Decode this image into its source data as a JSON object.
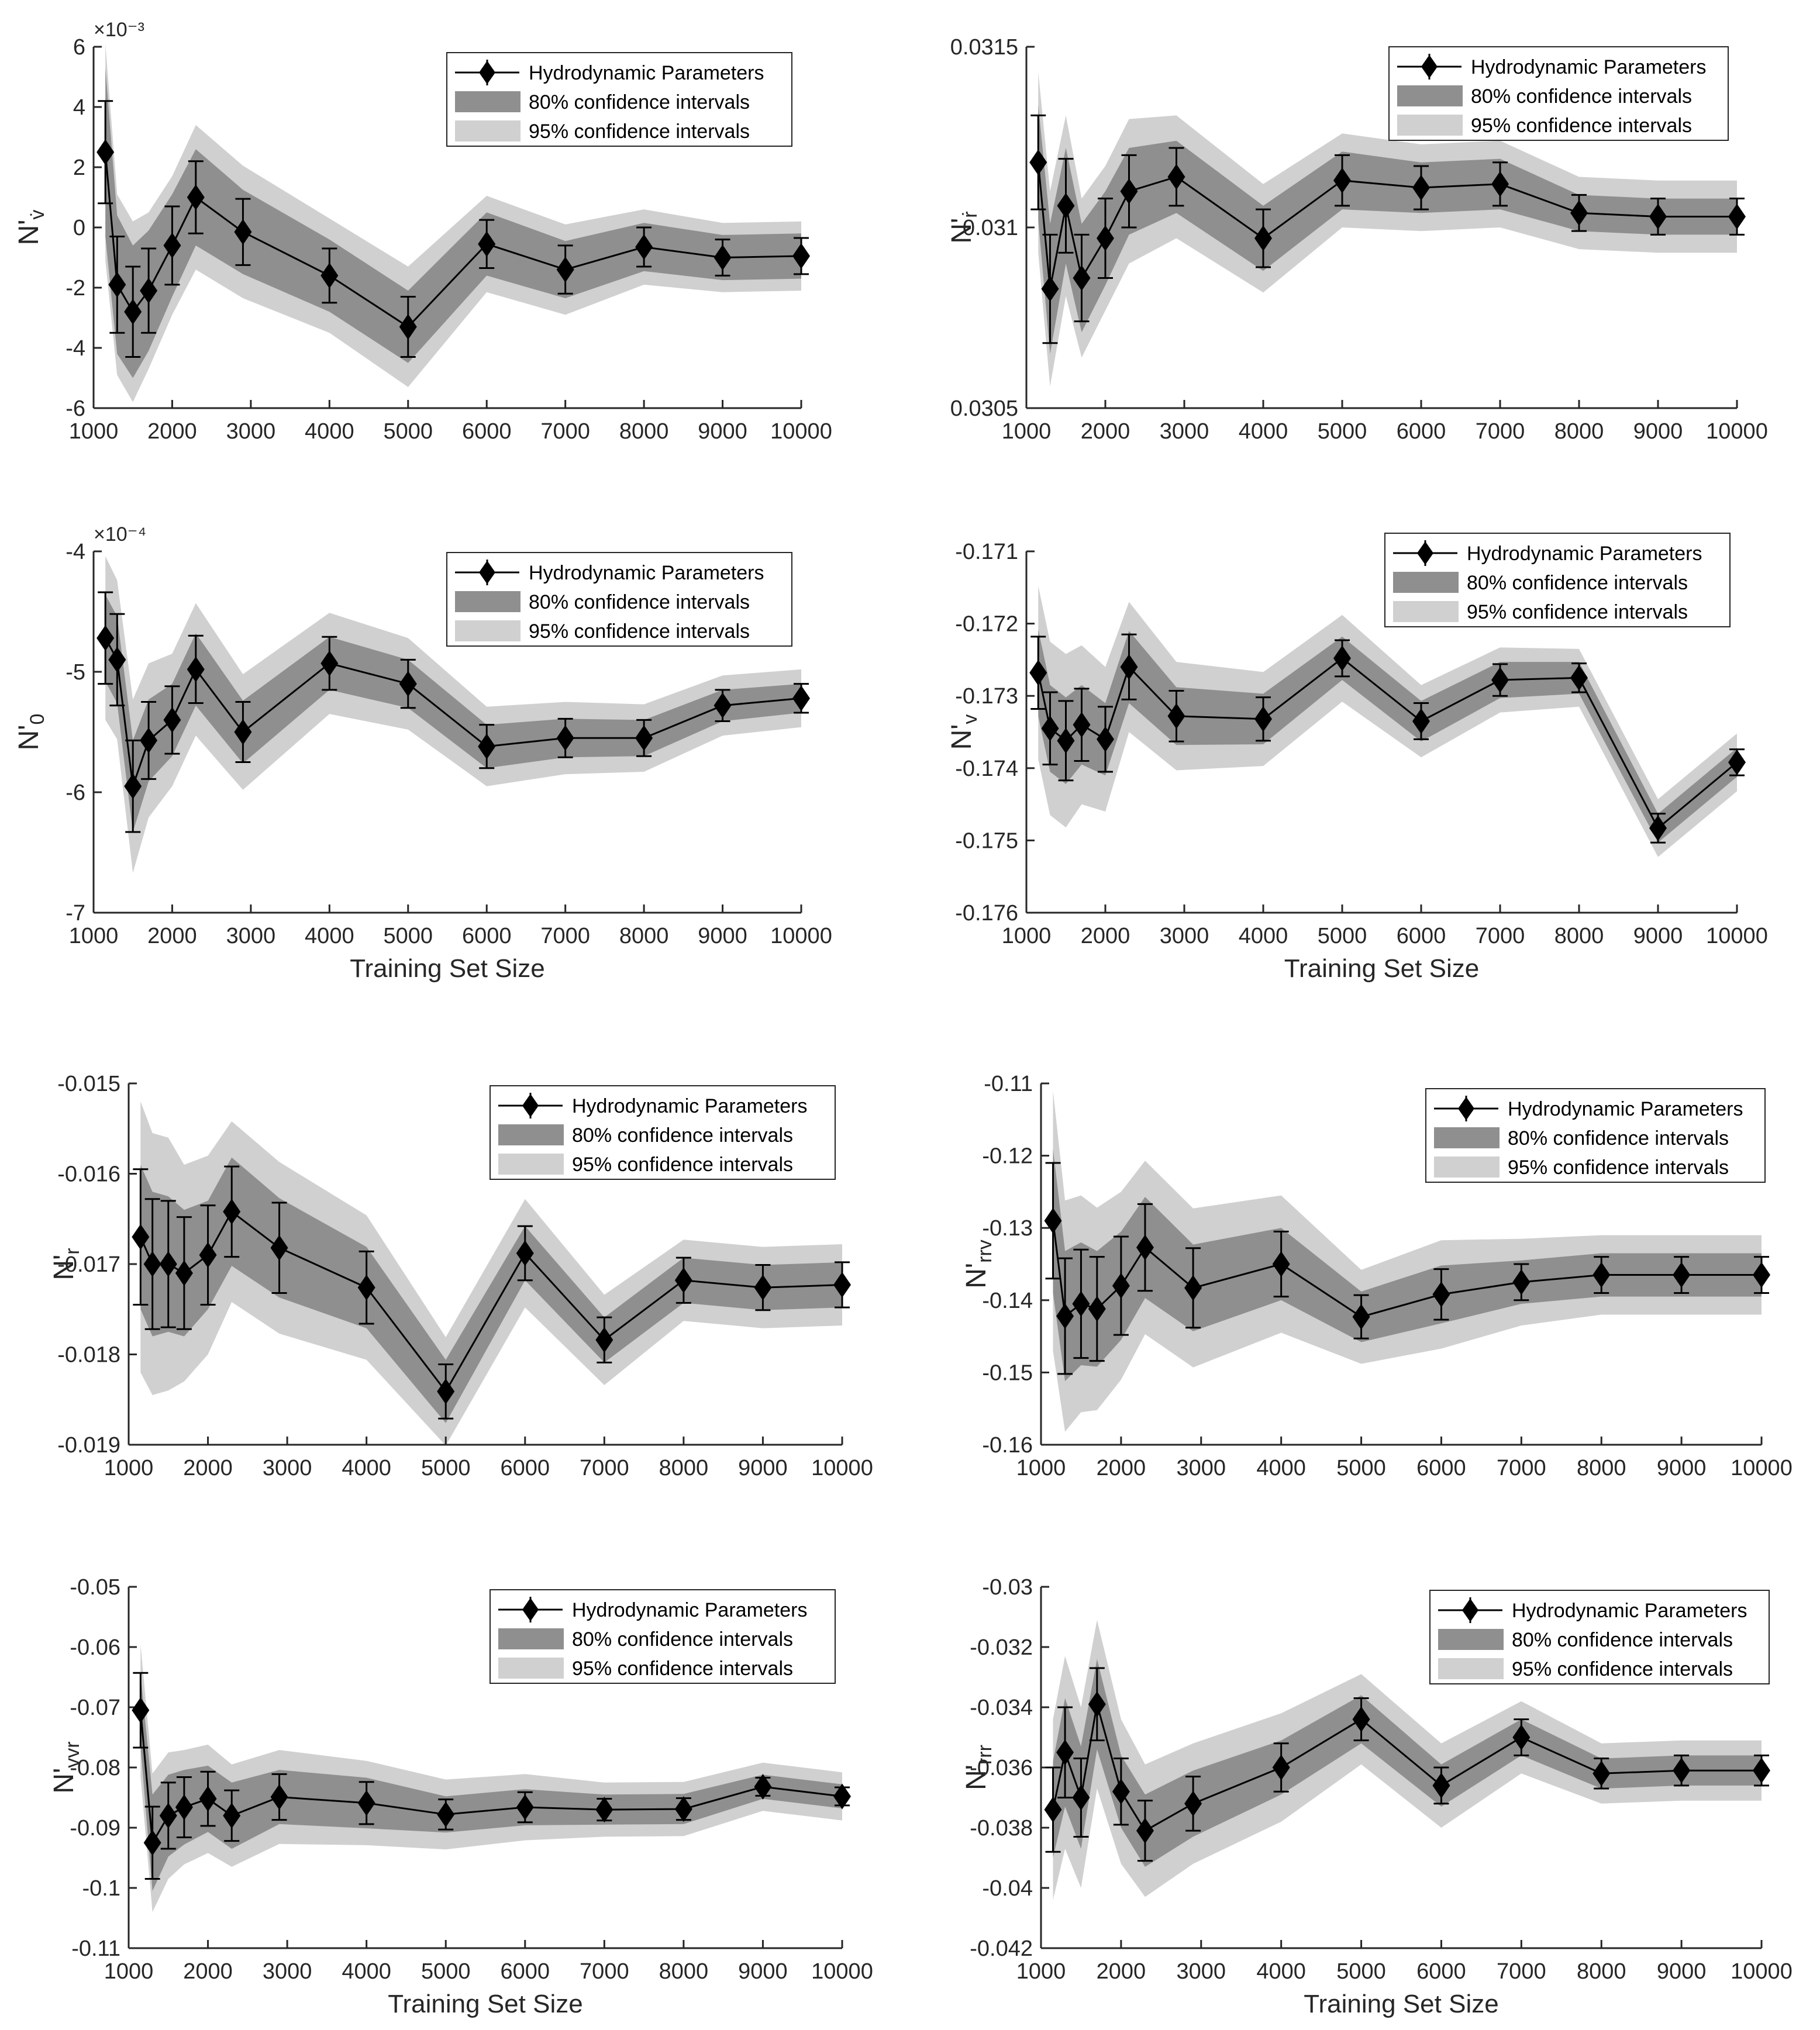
{
  "chart_data": [
    {
      "type": "line",
      "ylabel": "N'v̇",
      "ylabel_main": "N'",
      "ylabel_sub": "v̇",
      "xlabel": "",
      "exponent": "×10⁻³",
      "scale": 0.001,
      "ylim": [
        -6,
        6
      ],
      "yticks": [
        -6,
        -4,
        -2,
        0,
        2,
        4,
        6
      ],
      "ytick_labels": [
        "-6",
        "-4",
        "-2",
        "0",
        "2",
        "4",
        "6"
      ],
      "x": [
        1150,
        1300,
        1500,
        1700,
        2000,
        2300,
        2900,
        4000,
        5000,
        6000,
        7000,
        8000,
        9000,
        10000
      ],
      "y": [
        2.5,
        -1.9,
        -2.8,
        -2.1,
        -0.6,
        1.0,
        -0.15,
        -1.6,
        -3.3,
        -0.55,
        -1.4,
        -0.65,
        -1.0,
        -0.95
      ],
      "err": [
        1.7,
        1.6,
        1.5,
        1.4,
        1.3,
        1.2,
        1.1,
        0.9,
        1.0,
        0.8,
        0.8,
        0.65,
        0.6,
        0.6
      ],
      "ci80": [
        2.8,
        2.3,
        2.2,
        2.0,
        1.7,
        1.6,
        1.4,
        1.2,
        1.2,
        1.05,
        0.95,
        0.8,
        0.75,
        0.75
      ],
      "ci95": [
        3.6,
        3.0,
        3.0,
        2.6,
        2.3,
        2.4,
        2.2,
        1.9,
        2.0,
        1.6,
        1.5,
        1.25,
        1.15,
        1.15
      ],
      "legend": [
        "Hydrodynamic Parameters",
        "80% confidence intervals",
        "95% confidence intervals"
      ]
    },
    {
      "type": "line",
      "ylabel": "N'ṙ",
      "ylabel_main": "N'",
      "ylabel_sub": "ṙ",
      "xlabel": "",
      "ylim": [
        0.0305,
        0.0315
      ],
      "yticks": [
        0.0305,
        0.031,
        0.0315
      ],
      "ytick_labels": [
        "0.0305",
        "0.031",
        "0.0315"
      ],
      "x": [
        1150,
        1300,
        1500,
        1700,
        2000,
        2300,
        2900,
        4000,
        5000,
        6000,
        7000,
        8000,
        9000,
        10000
      ],
      "y": [
        0.03118,
        0.03083,
        0.03106,
        0.03086,
        0.03097,
        0.0311,
        0.03114,
        0.03097,
        0.03113,
        0.03111,
        0.03112,
        0.03104,
        0.03103,
        0.03103
      ],
      "err": [
        0.00013,
        0.00015,
        0.00013,
        0.00012,
        0.00011,
        0.0001,
        8e-05,
        8e-05,
        7e-05,
        6e-05,
        6e-05,
        5e-05,
        5e-05,
        5e-05
      ],
      "ci80": [
        0.00016,
        0.00018,
        0.00016,
        0.00015,
        0.00013,
        0.00012,
        0.0001,
        9e-05,
        8e-05,
        7e-05,
        7e-05,
        5e-05,
        5e-05,
        5e-05
      ],
      "ci95": [
        0.00025,
        0.00027,
        0.00025,
        0.00022,
        0.0002,
        0.0002,
        0.00017,
        0.00015,
        0.00013,
        0.00012,
        0.00012,
        0.0001,
        0.0001,
        0.0001
      ],
      "legend": [
        "Hydrodynamic Parameters",
        "80% confidence intervals",
        "95% confidence intervals"
      ]
    },
    {
      "type": "line",
      "ylabel": "N'0",
      "ylabel_main": "N'",
      "ylabel_sub": "0",
      "xlabel": "Training Set Size",
      "exponent": "×10⁻⁴",
      "scale": 0.0001,
      "ylim": [
        -7,
        -4
      ],
      "yticks": [
        -7,
        -6,
        -5,
        -4
      ],
      "ytick_labels": [
        "-7",
        "-6",
        "-5",
        "-4"
      ],
      "x": [
        1150,
        1300,
        1500,
        1700,
        2000,
        2300,
        2900,
        4000,
        5000,
        6000,
        7000,
        8000,
        9000,
        10000
      ],
      "y": [
        -4.72,
        -4.9,
        -5.95,
        -5.57,
        -5.4,
        -4.98,
        -5.5,
        -4.93,
        -5.1,
        -5.62,
        -5.55,
        -5.55,
        -5.28,
        -5.22
      ],
      "err": [
        0.38,
        0.38,
        0.38,
        0.32,
        0.28,
        0.28,
        0.25,
        0.22,
        0.2,
        0.18,
        0.16,
        0.15,
        0.13,
        0.12
      ],
      "ci80": [
        0.36,
        0.36,
        0.38,
        0.34,
        0.3,
        0.3,
        0.26,
        0.22,
        0.2,
        0.18,
        0.16,
        0.15,
        0.13,
        0.12
      ],
      "ci95": [
        0.68,
        0.66,
        0.72,
        0.64,
        0.55,
        0.55,
        0.48,
        0.42,
        0.38,
        0.33,
        0.3,
        0.28,
        0.25,
        0.24
      ],
      "legend": [
        "Hydrodynamic Parameters",
        "80% confidence intervals",
        "95% confidence intervals"
      ]
    },
    {
      "type": "line",
      "ylabel": "N'v",
      "ylabel_main": "N'",
      "ylabel_sub": "v",
      "xlabel": "Training Set Size",
      "ylim": [
        -0.176,
        -0.171
      ],
      "yticks": [
        -0.176,
        -0.175,
        -0.174,
        -0.173,
        -0.172,
        -0.171
      ],
      "ytick_labels": [
        "-0.176",
        "-0.175",
        "-0.174",
        "-0.173",
        "-0.172",
        "-0.171"
      ],
      "x": [
        1150,
        1300,
        1500,
        1700,
        2000,
        2300,
        2900,
        4000,
        5000,
        6000,
        7000,
        8000,
        9000,
        10000
      ],
      "y": [
        -0.17268,
        -0.17345,
        -0.17362,
        -0.1734,
        -0.1736,
        -0.1726,
        -0.17328,
        -0.17332,
        -0.17248,
        -0.17335,
        -0.17278,
        -0.17275,
        -0.17483,
        -0.17392
      ],
      "err": [
        0.0005,
        0.0005,
        0.00055,
        0.0005,
        0.00045,
        0.00045,
        0.00035,
        0.0003,
        0.00025,
        0.00025,
        0.00022,
        0.0002,
        0.0002,
        0.00018
      ],
      "ci80": [
        0.0006,
        0.0006,
        0.0006,
        0.00055,
        0.0005,
        0.0005,
        0.0004,
        0.00035,
        0.0003,
        0.00028,
        0.00025,
        0.00022,
        0.0002,
        0.0002
      ],
      "ci95": [
        0.0012,
        0.0012,
        0.0012,
        0.0011,
        0.001,
        0.0009,
        0.00075,
        0.00065,
        0.0006,
        0.0005,
        0.00045,
        0.0004,
        0.0004,
        0.0004
      ],
      "legend": [
        "Hydrodynamic Parameters",
        "80% confidence intervals",
        "95% confidence intervals"
      ]
    },
    {
      "type": "line",
      "ylabel": "N'r",
      "ylabel_main": "N'",
      "ylabel_sub": "r",
      "xlabel": "",
      "ylim": [
        -0.019,
        -0.015
      ],
      "yticks": [
        -0.019,
        -0.018,
        -0.017,
        -0.016,
        -0.015
      ],
      "ytick_labels": [
        "-0.019",
        "-0.018",
        "-0.017",
        "-0.016",
        "-0.015"
      ],
      "x": [
        1150,
        1300,
        1500,
        1700,
        2000,
        2300,
        2900,
        4000,
        5000,
        6000,
        7000,
        8000,
        9000,
        10000
      ],
      "y": [
        -0.0167,
        -0.017,
        -0.017,
        -0.0171,
        -0.0169,
        -0.01642,
        -0.01682,
        -0.01726,
        -0.01841,
        -0.01688,
        -0.01784,
        -0.01718,
        -0.01726,
        -0.01723
      ],
      "err": [
        0.00075,
        0.00072,
        0.0007,
        0.00062,
        0.00055,
        0.0005,
        0.0005,
        0.0004,
        0.0003,
        0.0003,
        0.00025,
        0.00025,
        0.00025,
        0.00025
      ],
      "ci80": [
        0.0008,
        0.0008,
        0.00075,
        0.0007,
        0.0006,
        0.0006,
        0.00055,
        0.00045,
        0.00035,
        0.0003,
        0.00025,
        0.00025,
        0.00025,
        0.00025
      ],
      "ci95": [
        0.0015,
        0.00145,
        0.0014,
        0.0012,
        0.0011,
        0.001,
        0.00095,
        0.0008,
        0.0006,
        0.0006,
        0.0005,
        0.00045,
        0.00045,
        0.00045
      ],
      "legend": [
        "Hydrodynamic Parameters",
        "80% confidence intervals",
        "95% confidence intervals"
      ]
    },
    {
      "type": "line",
      "ylabel": "N'rrv",
      "ylabel_main": "N'",
      "ylabel_sub": "rrv",
      "xlabel": "",
      "ylim": [
        -0.16,
        -0.11
      ],
      "yticks": [
        -0.16,
        -0.15,
        -0.14,
        -0.13,
        -0.12,
        -0.11
      ],
      "ytick_labels": [
        "-0.16",
        "-0.15",
        "-0.14",
        "-0.13",
        "-0.12",
        "-0.11"
      ],
      "x": [
        1150,
        1300,
        1500,
        1700,
        2000,
        2300,
        2900,
        4000,
        5000,
        6000,
        7000,
        8000,
        9000,
        10000
      ],
      "y": [
        -0.129,
        -0.1422,
        -0.1405,
        -0.1412,
        -0.138,
        -0.1327,
        -0.1383,
        -0.135,
        -0.1423,
        -0.1392,
        -0.1375,
        -0.1365,
        -0.1365,
        -0.1365
      ],
      "err": [
        0.008,
        0.008,
        0.0075,
        0.0072,
        0.0068,
        0.006,
        0.0055,
        0.0045,
        0.003,
        0.0035,
        0.0025,
        0.0025,
        0.0025,
        0.0025
      ],
      "ci80": [
        0.01,
        0.009,
        0.0085,
        0.008,
        0.0075,
        0.007,
        0.006,
        0.005,
        0.0035,
        0.004,
        0.003,
        0.003,
        0.003,
        0.003
      ],
      "ci95": [
        0.018,
        0.016,
        0.015,
        0.014,
        0.013,
        0.012,
        0.011,
        0.0095,
        0.0065,
        0.0075,
        0.006,
        0.0055,
        0.0055,
        0.0055
      ],
      "legend": [
        "Hydrodynamic Parameters",
        "80% confidence intervals",
        "95% confidence intervals"
      ]
    },
    {
      "type": "line",
      "ylabel": "N'vvr",
      "ylabel_main": "N'",
      "ylabel_sub": "vvr",
      "xlabel": "Training Set Size",
      "ylim": [
        -0.11,
        -0.05
      ],
      "yticks": [
        -0.11,
        -0.1,
        -0.09,
        -0.08,
        -0.07,
        -0.06,
        -0.05
      ],
      "ytick_labels": [
        "-0.11",
        "-0.1",
        "-0.09",
        "-0.08",
        "-0.07",
        "-0.06",
        "-0.05"
      ],
      "x": [
        1150,
        1300,
        1500,
        1700,
        2000,
        2300,
        2900,
        4000,
        5000,
        6000,
        7000,
        8000,
        9000,
        10000
      ],
      "y": [
        -0.0705,
        -0.0925,
        -0.088,
        -0.0866,
        -0.0852,
        -0.088,
        -0.0849,
        -0.0859,
        -0.0878,
        -0.0866,
        -0.087,
        -0.0869,
        -0.0832,
        -0.0848
      ],
      "err": [
        0.0062,
        0.006,
        0.0055,
        0.005,
        0.0045,
        0.0042,
        0.0038,
        0.0035,
        0.0025,
        0.0025,
        0.0018,
        0.0018,
        0.0015,
        0.0015
      ],
      "ci80": [
        0.006,
        0.008,
        0.0068,
        0.0062,
        0.0055,
        0.0055,
        0.0045,
        0.0042,
        0.003,
        0.003,
        0.0025,
        0.0025,
        0.002,
        0.002
      ],
      "ci95": [
        0.011,
        0.0115,
        0.0105,
        0.0095,
        0.009,
        0.0085,
        0.0078,
        0.007,
        0.0058,
        0.0055,
        0.0045,
        0.0045,
        0.004,
        0.004
      ],
      "legend": [
        "Hydrodynamic Parameters",
        "80% confidence intervals",
        "95% confidence intervals"
      ]
    },
    {
      "type": "line",
      "ylabel": "N'rrr",
      "ylabel_main": "N'",
      "ylabel_sub": "rrr",
      "xlabel": "Training Set Size",
      "ylim": [
        -0.042,
        -0.03
      ],
      "yticks": [
        -0.042,
        -0.04,
        -0.038,
        -0.036,
        -0.034,
        -0.032,
        -0.03
      ],
      "ytick_labels": [
        "-0.042",
        "-0.04",
        "-0.038",
        "-0.036",
        "-0.034",
        "-0.032",
        "-0.03"
      ],
      "x": [
        1150,
        1300,
        1500,
        1700,
        2000,
        2300,
        2900,
        4000,
        5000,
        6000,
        7000,
        8000,
        9000,
        10000
      ],
      "y": [
        -0.0374,
        -0.0355,
        -0.037,
        -0.0339,
        -0.0368,
        -0.0381,
        -0.0372,
        -0.036,
        -0.0344,
        -0.0366,
        -0.035,
        -0.0362,
        -0.0361,
        -0.0361
      ],
      "err": [
        0.0014,
        0.0015,
        0.0013,
        0.0012,
        0.0011,
        0.001,
        0.0009,
        0.0008,
        0.0007,
        0.0006,
        0.0006,
        0.0005,
        0.0005,
        0.0005
      ],
      "ci80": [
        0.0016,
        0.0018,
        0.0017,
        0.0015,
        0.0012,
        0.0012,
        0.0011,
        0.0009,
        0.0008,
        0.0007,
        0.0006,
        0.0005,
        0.0005,
        0.0005
      ],
      "ci95": [
        0.003,
        0.0032,
        0.003,
        0.0028,
        0.0024,
        0.0022,
        0.002,
        0.0018,
        0.0015,
        0.0014,
        0.0012,
        0.001,
        0.001,
        0.001
      ],
      "legend": [
        "Hydrodynamic Parameters",
        "80% confidence intervals",
        "95% confidence intervals"
      ]
    }
  ],
  "x_axis": {
    "xlim": [
      1000,
      10000
    ],
    "ticks": [
      1000,
      2000,
      3000,
      4000,
      5000,
      6000,
      7000,
      8000,
      9000,
      10000
    ],
    "tick_labels": [
      "1000",
      "2000",
      "3000",
      "4000",
      "5000",
      "6000",
      "7000",
      "8000",
      "9000",
      "10000"
    ]
  },
  "colors": {
    "ci95": "#d0d0d0",
    "ci80": "#8f8f8f",
    "line": "#000000",
    "axis": "#262626",
    "background": "#ffffff"
  }
}
